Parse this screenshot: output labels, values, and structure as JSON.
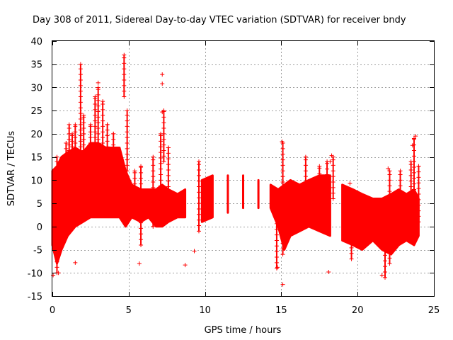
{
  "chart_data": {
    "type": "scatter",
    "title": "Day 308 of 2011, Sidereal Day-to-day VTEC variation (SDTVAR) for receiver bndy",
    "xlabel": "GPS time / hours",
    "ylabel": "SDTVAR / TECUs",
    "xlim": [
      0,
      25
    ],
    "ylim": [
      -15,
      40
    ],
    "grid": true,
    "marker": "+",
    "colors": {
      "series": "#ff0000",
      "grid": "#a0a0a0",
      "axis": "#000000"
    },
    "x_ticks": [
      0,
      5,
      10,
      15,
      20,
      25
    ],
    "y_ticks": [
      -15,
      -10,
      -5,
      0,
      5,
      10,
      15,
      20,
      25,
      30,
      35,
      40
    ],
    "envelope": [
      {
        "x": 0.0,
        "low": -4,
        "high": 12
      },
      {
        "x": 0.3,
        "low": -8,
        "high": 13
      },
      {
        "x": 0.6,
        "low": -5,
        "high": 15
      },
      {
        "x": 1.0,
        "low": -2,
        "high": 16
      },
      {
        "x": 1.5,
        "low": 0,
        "high": 17
      },
      {
        "x": 2.0,
        "low": 1,
        "high": 16
      },
      {
        "x": 2.5,
        "low": 2,
        "high": 18
      },
      {
        "x": 3.0,
        "low": 2,
        "high": 18
      },
      {
        "x": 3.5,
        "low": 2,
        "high": 17
      },
      {
        "x": 4.0,
        "low": 2,
        "high": 17
      },
      {
        "x": 4.4,
        "low": 2,
        "high": 17
      },
      {
        "x": 4.8,
        "low": 0,
        "high": 12
      },
      {
        "x": 5.2,
        "low": 2,
        "high": 9
      },
      {
        "x": 5.8,
        "low": 1,
        "high": 8
      },
      {
        "x": 6.3,
        "low": 2,
        "high": 8
      },
      {
        "x": 6.8,
        "low": 0,
        "high": 8
      },
      {
        "x": 7.2,
        "low": 0,
        "high": 9
      },
      {
        "x": 7.6,
        "low": 1,
        "high": 8
      },
      {
        "x": 8.2,
        "low": 2,
        "high": 7
      },
      {
        "x": 8.7,
        "low": 2,
        "high": 8
      },
      {
        "x": 9.8,
        "low": 1,
        "high": 10
      },
      {
        "x": 10.5,
        "low": 2,
        "high": 11
      },
      {
        "x": 11.5,
        "low": 3,
        "high": 11
      },
      {
        "x": 12.5,
        "low": 4,
        "high": 11
      },
      {
        "x": 13.5,
        "low": 4,
        "high": 10
      },
      {
        "x": 14.3,
        "low": 4,
        "high": 9
      },
      {
        "x": 14.8,
        "low": 0,
        "high": 8
      },
      {
        "x": 15.2,
        "low": -5,
        "high": 9
      },
      {
        "x": 15.6,
        "low": -2,
        "high": 10
      },
      {
        "x": 16.2,
        "low": -1,
        "high": 9
      },
      {
        "x": 16.8,
        "low": 0,
        "high": 10
      },
      {
        "x": 17.5,
        "low": -1,
        "high": 11
      },
      {
        "x": 18.2,
        "low": -2,
        "high": 11
      },
      {
        "x": 19.0,
        "low": -3,
        "high": 9
      },
      {
        "x": 19.7,
        "low": -4,
        "high": 8
      },
      {
        "x": 20.3,
        "low": -5,
        "high": 7
      },
      {
        "x": 21.0,
        "low": -3,
        "high": 6
      },
      {
        "x": 21.6,
        "low": -5,
        "high": 6
      },
      {
        "x": 22.2,
        "low": -6,
        "high": 7
      },
      {
        "x": 22.7,
        "low": -4,
        "high": 8
      },
      {
        "x": 23.2,
        "low": -3,
        "high": 7
      },
      {
        "x": 23.7,
        "low": -4,
        "high": 8
      },
      {
        "x": 24.0,
        "low": -2,
        "high": 6
      }
    ],
    "spikes": [
      {
        "x": 0.3,
        "low": -10,
        "high": 15
      },
      {
        "x": 0.9,
        "low": 0,
        "high": 18
      },
      {
        "x": 1.1,
        "low": 2,
        "high": 22
      },
      {
        "x": 1.3,
        "low": 4,
        "high": 20
      },
      {
        "x": 1.5,
        "low": 6,
        "high": 22
      },
      {
        "x": 1.85,
        "low": 10,
        "high": 35
      },
      {
        "x": 2.05,
        "low": 8,
        "high": 24
      },
      {
        "x": 2.5,
        "low": 12,
        "high": 22
      },
      {
        "x": 2.8,
        "low": 12,
        "high": 28
      },
      {
        "x": 3.0,
        "low": 14,
        "high": 30
      },
      {
        "x": 3.3,
        "low": 12,
        "high": 27
      },
      {
        "x": 3.6,
        "low": 10,
        "high": 22
      },
      {
        "x": 4.0,
        "low": 8,
        "high": 20
      },
      {
        "x": 4.7,
        "low": 28,
        "high": 37
      },
      {
        "x": 4.9,
        "low": 12,
        "high": 25
      },
      {
        "x": 5.4,
        "low": 2,
        "high": 12
      },
      {
        "x": 5.8,
        "low": -4,
        "high": 13
      },
      {
        "x": 6.6,
        "low": 0,
        "high": 15
      },
      {
        "x": 7.1,
        "low": 4,
        "high": 20
      },
      {
        "x": 7.3,
        "low": 14,
        "high": 25
      },
      {
        "x": 7.6,
        "low": 5,
        "high": 17
      },
      {
        "x": 9.6,
        "low": -1,
        "high": 14
      },
      {
        "x": 14.7,
        "low": -9,
        "high": 4
      },
      {
        "x": 15.1,
        "low": -6,
        "high": 18
      },
      {
        "x": 16.6,
        "low": 6,
        "high": 15
      },
      {
        "x": 17.5,
        "low": 3,
        "high": 13
      },
      {
        "x": 18.0,
        "low": 4,
        "high": 14
      },
      {
        "x": 18.4,
        "low": 6,
        "high": 15
      },
      {
        "x": 19.6,
        "low": -7,
        "high": 4
      },
      {
        "x": 21.8,
        "low": -11,
        "high": 1
      },
      {
        "x": 22.1,
        "low": -8,
        "high": 12
      },
      {
        "x": 22.8,
        "low": 4,
        "high": 12
      },
      {
        "x": 23.5,
        "low": 5,
        "high": 14
      },
      {
        "x": 23.7,
        "low": 8,
        "high": 19
      },
      {
        "x": 24.0,
        "low": 1,
        "high": 13
      }
    ],
    "outliers": [
      {
        "x": 0.05,
        "y": -10.5
      },
      {
        "x": 0.4,
        "y": -10
      },
      {
        "x": 1.5,
        "y": -7.8
      },
      {
        "x": 3.0,
        "y": 31
      },
      {
        "x": 5.7,
        "y": -8
      },
      {
        "x": 7.2,
        "y": 32.8
      },
      {
        "x": 7.2,
        "y": 30.8
      },
      {
        "x": 7.2,
        "y": 24.7
      },
      {
        "x": 8.7,
        "y": -8.3
      },
      {
        "x": 9.3,
        "y": -5.3
      },
      {
        "x": 14.75,
        "y": -8.8
      },
      {
        "x": 15.05,
        "y": 18.3
      },
      {
        "x": 15.1,
        "y": -12.5
      },
      {
        "x": 18.1,
        "y": -9.8
      },
      {
        "x": 18.2,
        "y": 14
      },
      {
        "x": 18.3,
        "y": 15.3
      },
      {
        "x": 19.5,
        "y": 9.3
      },
      {
        "x": 21.6,
        "y": -10.5
      },
      {
        "x": 23.8,
        "y": 19.5
      },
      {
        "x": 23.6,
        "y": 17.5
      },
      {
        "x": 22.0,
        "y": 12.5
      }
    ]
  }
}
